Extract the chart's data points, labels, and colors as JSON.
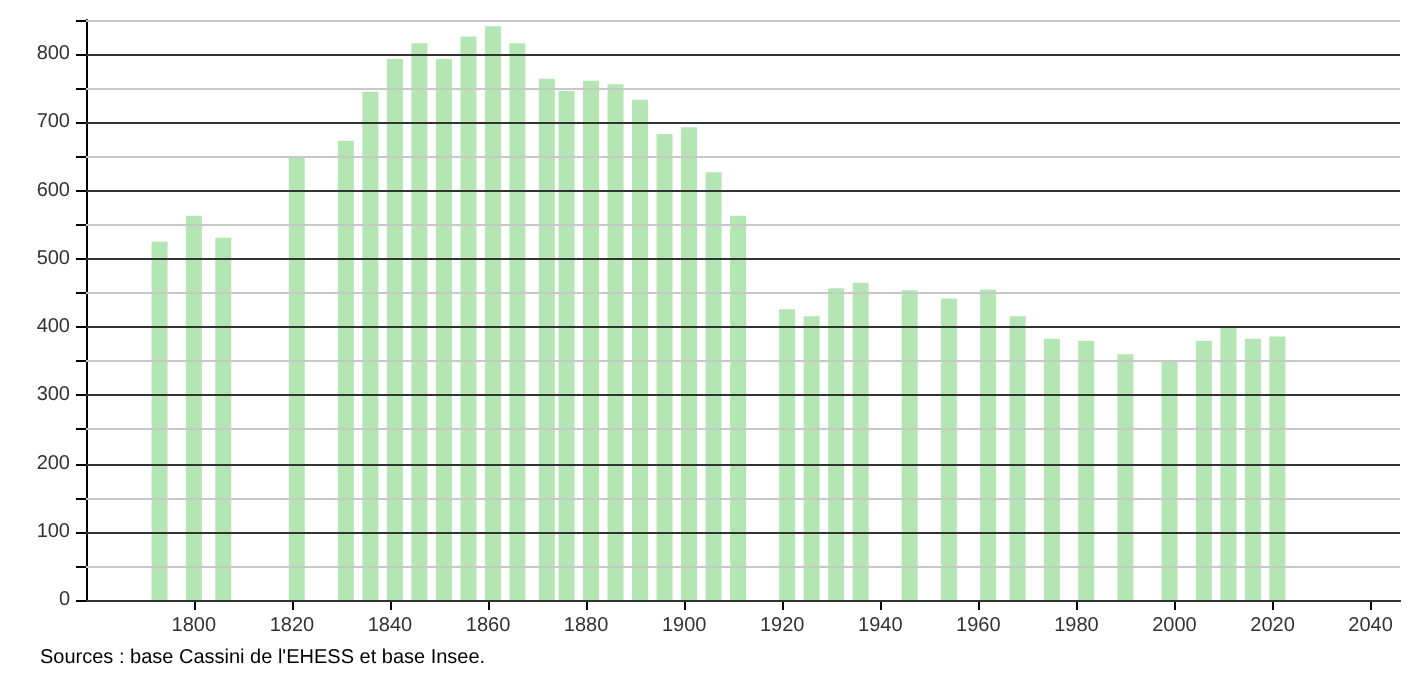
{
  "chart_data": {
    "type": "bar",
    "x": [
      1793,
      1800,
      1806,
      1821,
      1831,
      1836,
      1841,
      1846,
      1851,
      1856,
      1861,
      1866,
      1872,
      1876,
      1881,
      1886,
      1891,
      1896,
      1901,
      1906,
      1911,
      1921,
      1926,
      1931,
      1936,
      1946,
      1954,
      1962,
      1968,
      1975,
      1982,
      1990,
      1999,
      2006,
      2011,
      2016,
      2021
    ],
    "values": [
      525,
      563,
      531,
      649,
      673,
      745,
      793,
      816,
      793,
      826,
      841,
      816,
      764,
      746,
      761,
      756,
      733,
      683,
      693,
      627,
      563,
      426,
      416,
      457,
      465,
      454,
      442,
      455,
      416,
      383,
      380,
      360,
      350,
      380,
      400,
      383,
      386
    ],
    "color": "#b3e6b3",
    "xlim": [
      1778,
      2046
    ],
    "xticks": [
      1800,
      1820,
      1840,
      1860,
      1880,
      1900,
      1920,
      1940,
      1960,
      1980,
      2000,
      2020,
      2040
    ],
    "ylim": [
      0,
      850
    ],
    "yticks": [
      0,
      {
        "value": 50,
        "label": null
      },
      100,
      {
        "value": 150,
        "label": null
      },
      200,
      {
        "value": 250,
        "label": null
      },
      300,
      {
        "value": 350,
        "label": null
      },
      400,
      {
        "value": 450,
        "label": null
      },
      500,
      {
        "value": 550,
        "label": null
      },
      600,
      {
        "value": 650,
        "label": null
      },
      700,
      {
        "value": 750,
        "label": null
      },
      800,
      {
        "value": 850,
        "label": null
      }
    ],
    "grid": "y",
    "annotations": [
      "Sources : base Cassini de l'EHESS et base Insee."
    ]
  }
}
